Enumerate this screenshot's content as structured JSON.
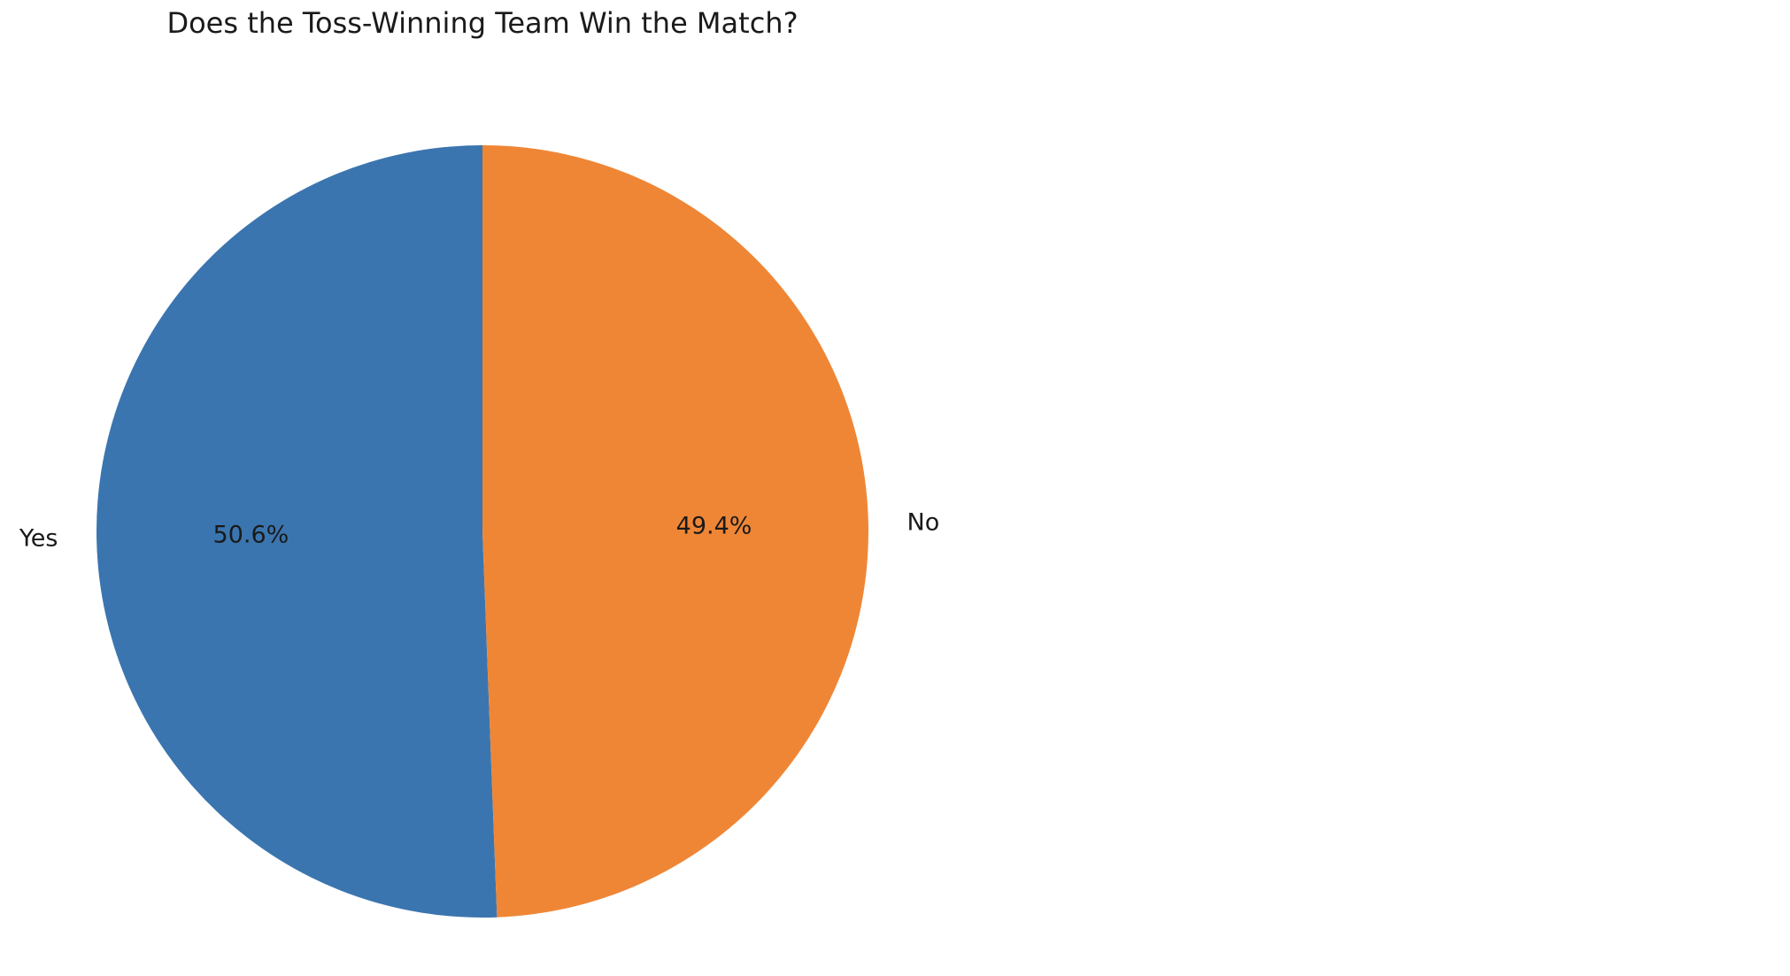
{
  "chart_data": {
    "type": "pie",
    "title": "Does the Toss-Winning Team Win the Match?",
    "slices": [
      {
        "label": "Yes",
        "value": 50.6,
        "pct_label": "50.6%",
        "color": "#3b75af"
      },
      {
        "label": "No",
        "value": 49.4,
        "pct_label": "49.4%",
        "color": "#ef8636"
      }
    ],
    "start_angle": 90,
    "direction": "counterclockwise"
  }
}
